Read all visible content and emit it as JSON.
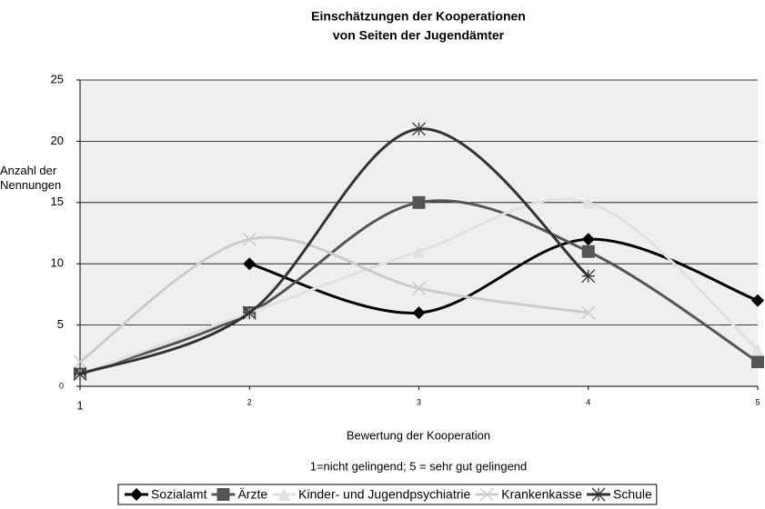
{
  "chart_data": {
    "type": "line",
    "title": "Einschätzungen der Kooperationen",
    "subtitle": "von Seiten der Jugendämter",
    "ylabel": "Anzahl der Nennungen",
    "xlabel": "Bewertung der Kooperation",
    "annotation": "1=nicht gelingend; 5 = sehr gut gelingend",
    "x": [
      1,
      2,
      3,
      4,
      5
    ],
    "xlim": [
      1,
      5
    ],
    "xticks": [
      1,
      2,
      3,
      4,
      5
    ],
    "ylim": [
      0,
      25
    ],
    "yticks": [
      0,
      5,
      10,
      15,
      20,
      25
    ],
    "grid": true,
    "smooth": true,
    "legend": "bottom",
    "series": [
      {
        "name": "Sozialamt",
        "color": "#000000",
        "marker": "diamond",
        "values": [
          null,
          10,
          6,
          12,
          7
        ]
      },
      {
        "name": "Ärzte",
        "color": "#555555",
        "marker": "square",
        "values": [
          1,
          6,
          15,
          11,
          2
        ]
      },
      {
        "name": "Kinder- und Jugendpsychiatrie",
        "color": "#e2e2e2",
        "marker": "triangle",
        "values": [
          1,
          6,
          11,
          15,
          3
        ]
      },
      {
        "name": "Krankenkasse",
        "color": "#cccccc",
        "marker": "cross",
        "values": [
          2,
          12,
          8,
          6,
          null
        ]
      },
      {
        "name": "Schule",
        "color": "#333333",
        "marker": "star",
        "values": [
          1,
          6,
          21,
          9,
          null
        ]
      }
    ]
  }
}
